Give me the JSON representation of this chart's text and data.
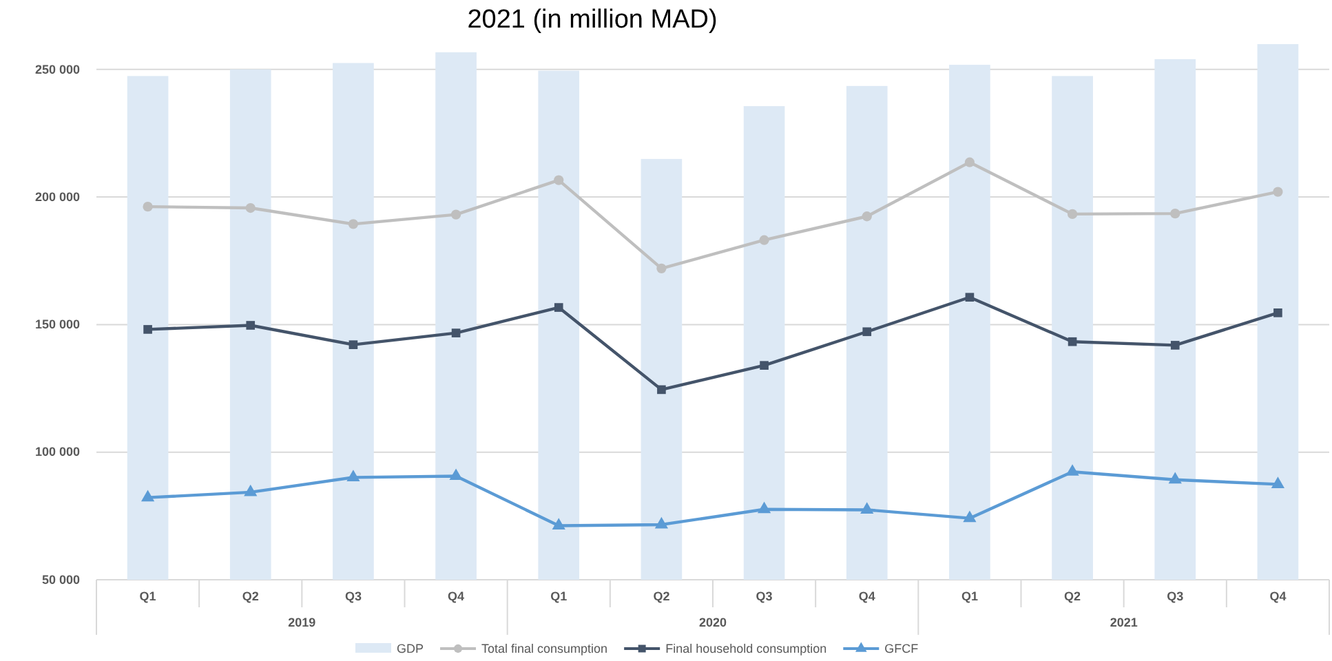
{
  "chart_data": {
    "type": "bar",
    "title": "2021 (in million MAD)",
    "categories": [
      "Q1",
      "Q2",
      "Q3",
      "Q4",
      "Q1",
      "Q2",
      "Q3",
      "Q4",
      "Q1",
      "Q2",
      "Q3",
      "Q4"
    ],
    "annotations": [
      "2019",
      "2020",
      "2021"
    ],
    "series": [
      {
        "name": "GDP",
        "color": "#dde9f5",
        "values": [
          247400,
          250000,
          252500,
          256700,
          249500,
          214900,
          235600,
          243500,
          251800,
          247400,
          254000,
          259900
        ]
      },
      {
        "name": "Total final consumption",
        "type": "line",
        "marker": "circle",
        "color": "#bfbfbf",
        "values": [
          196200,
          195700,
          189400,
          193100,
          206600,
          172000,
          183100,
          192400,
          213600,
          193300,
          193500,
          202000
        ]
      },
      {
        "name": "Final household consumption",
        "type": "line",
        "marker": "square",
        "color": "#44546a",
        "values": [
          148100,
          149700,
          142100,
          146700,
          156700,
          124500,
          134000,
          147200,
          160700,
          143300,
          141900,
          154600
        ]
      },
      {
        "name": "GFCF",
        "type": "line",
        "marker": "triangle",
        "color": "#5b9bd5",
        "values": [
          82200,
          84300,
          90100,
          90600,
          71200,
          71600,
          77600,
          77400,
          74100,
          92300,
          89200,
          87400
        ]
      }
    ],
    "ylim": [
      50000,
      261000
    ],
    "yticks": [
      {
        "value": 50000,
        "label": "50 000"
      },
      {
        "value": 100000,
        "label": "100 000"
      },
      {
        "value": 150000,
        "label": "150 000"
      },
      {
        "value": 200000,
        "label": "200 000"
      },
      {
        "value": 250000,
        "label": "250 000"
      }
    ],
    "grid": "y",
    "legend": "bottom"
  }
}
